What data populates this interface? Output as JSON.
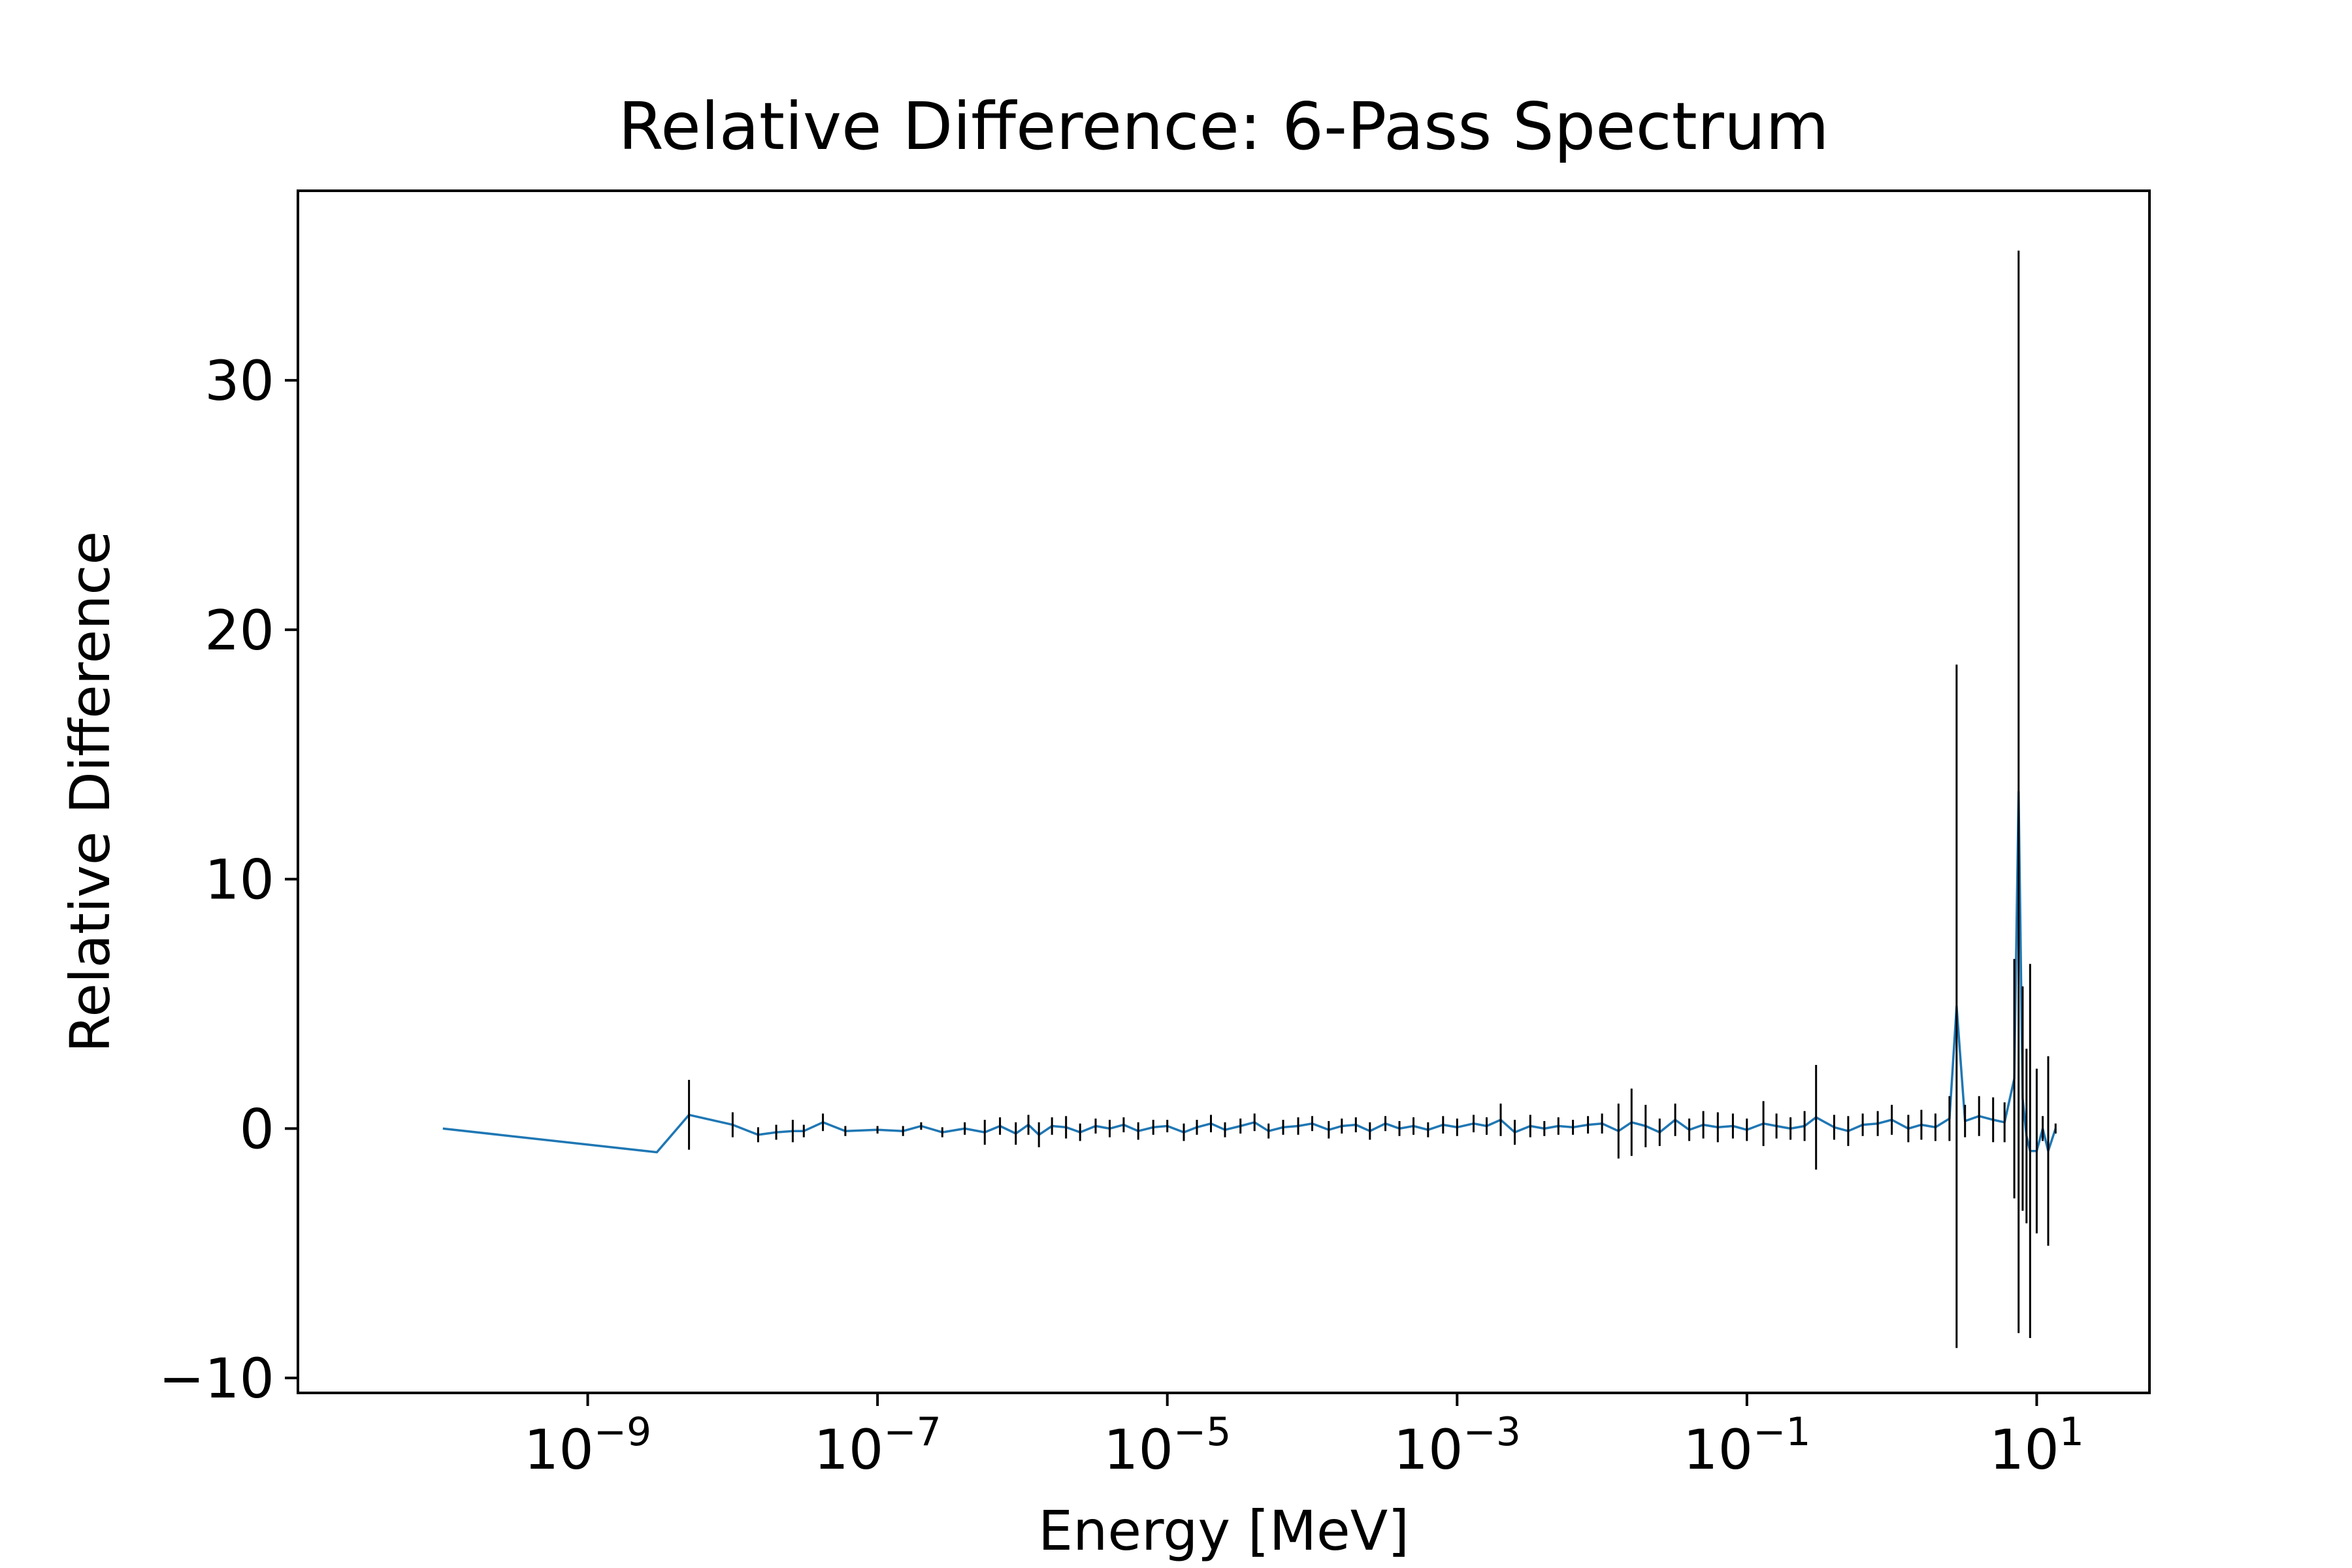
{
  "chart_data": {
    "type": "line",
    "title": "Relative Difference: 6-Pass Spectrum",
    "xlabel": "Energy [MeV]",
    "ylabel": "Relative Difference",
    "xscale": "log",
    "xlim": [
      1e-11,
      60
    ],
    "ylim": [
      -10.6,
      37.6
    ],
    "grid": false,
    "legend": "none",
    "x_ticks": [
      {
        "value": 1e-09,
        "base": "10",
        "exp": "−9"
      },
      {
        "value": 1e-07,
        "base": "10",
        "exp": "−7"
      },
      {
        "value": 1e-05,
        "base": "10",
        "exp": "−5"
      },
      {
        "value": 0.001,
        "base": "10",
        "exp": "−3"
      },
      {
        "value": 0.1,
        "base": "10",
        "exp": "−1"
      },
      {
        "value": 10,
        "base": "10",
        "exp": "1"
      }
    ],
    "y_ticks": [
      {
        "value": -10,
        "label": "−10"
      },
      {
        "value": 0,
        "label": "0"
      },
      {
        "value": 10,
        "label": "10"
      },
      {
        "value": 20,
        "label": "20"
      },
      {
        "value": 30,
        "label": "30"
      }
    ],
    "colors": {
      "line": "#1f77b4",
      "errorbar": "#000000"
    },
    "series": [
      {
        "x": [
          1e-10,
          3e-09,
          5e-09,
          1e-08,
          1.5e-08,
          2e-08,
          2.6e-08,
          3.1e-08,
          4.2e-08,
          6e-08,
          1e-07,
          1.5e-07,
          2e-07,
          2.8e-07,
          4e-07,
          5.5e-07,
          7e-07,
          9e-07,
          1.1e-06,
          1.3e-06,
          1.6e-06,
          2e-06,
          2.5e-06,
          3.2e-06,
          4e-06,
          5e-06,
          6.3e-06,
          8e-06,
          1e-05,
          1.3e-05,
          1.6e-05,
          2e-05,
          2.5e-05,
          3.2e-05,
          4e-05,
          5e-05,
          6.3e-05,
          8e-05,
          0.0001,
          0.00013,
          0.00016,
          0.0002,
          0.00025,
          0.00032,
          0.0004,
          0.0005,
          0.00063,
          0.0008,
          0.001,
          0.0013,
          0.0016,
          0.002,
          0.0025,
          0.0032,
          0.004,
          0.005,
          0.0063,
          0.008,
          0.01,
          0.013,
          0.016,
          0.02,
          0.025,
          0.032,
          0.04,
          0.05,
          0.063,
          0.08,
          0.1,
          0.13,
          0.16,
          0.2,
          0.25,
          0.3,
          0.4,
          0.5,
          0.63,
          0.8,
          1.0,
          1.3,
          1.6,
          2.0,
          2.5,
          2.8,
          3.2,
          4.0,
          5.0,
          6.0,
          7.0,
          7.5,
          8.0,
          8.5,
          9.0,
          10.0,
          11.0,
          12.0,
          13.5
        ],
        "values": [
          0,
          -0.95,
          0.55,
          0.15,
          -0.25,
          -0.15,
          -0.1,
          -0.1,
          0.25,
          -0.1,
          -0.05,
          -0.1,
          0.1,
          -0.15,
          0,
          -0.15,
          0.1,
          -0.2,
          0.15,
          -0.25,
          0.1,
          0.05,
          -0.15,
          0.1,
          0,
          0.15,
          -0.1,
          0.05,
          0.1,
          -0.15,
          0.05,
          0.2,
          -0.05,
          0.1,
          0.25,
          -0.1,
          0.05,
          0.1,
          0.2,
          -0.05,
          0.1,
          0.15,
          -0.1,
          0.2,
          0,
          0.1,
          -0.05,
          0.15,
          0.05,
          0.2,
          0.1,
          0.35,
          -0.15,
          0.1,
          0,
          0.1,
          0.05,
          0.15,
          0.2,
          -0.1,
          0.25,
          0.1,
          -0.15,
          0.35,
          -0.05,
          0.15,
          0.05,
          0.1,
          -0.05,
          0.2,
          0.1,
          0,
          0.1,
          0.45,
          0.05,
          -0.1,
          0.15,
          0.2,
          0.35,
          0,
          0.15,
          0.05,
          0.4,
          4.9,
          0.3,
          0.5,
          0.35,
          0.25,
          2.0,
          13.5,
          1.2,
          -0.3,
          -0.9,
          -0.9,
          0,
          -0.9,
          0
        ],
        "errors": [
          0,
          0,
          1.4,
          0.5,
          0.3,
          0.3,
          0.45,
          0.25,
          0.35,
          0.2,
          0.15,
          0.2,
          0.15,
          0.2,
          0.25,
          0.5,
          0.35,
          0.45,
          0.4,
          0.5,
          0.35,
          0.45,
          0.35,
          0.3,
          0.35,
          0.3,
          0.35,
          0.3,
          0.25,
          0.35,
          0.3,
          0.35,
          0.3,
          0.3,
          0.35,
          0.3,
          0.3,
          0.35,
          0.3,
          0.35,
          0.3,
          0.3,
          0.35,
          0.3,
          0.3,
          0.35,
          0.3,
          0.35,
          0.35,
          0.35,
          0.35,
          0.65,
          0.5,
          0.45,
          0.3,
          0.35,
          0.3,
          0.35,
          0.4,
          1.1,
          1.35,
          0.85,
          0.55,
          0.65,
          0.45,
          0.55,
          0.6,
          0.5,
          0.45,
          0.9,
          0.5,
          0.45,
          0.6,
          2.1,
          0.5,
          0.6,
          0.45,
          0.5,
          0.6,
          0.55,
          0.6,
          0.55,
          0.9,
          13.7,
          0.65,
          0.8,
          0.9,
          0.8,
          4.8,
          21.7,
          4.5,
          3.5,
          7.5,
          3.3,
          0.5,
          3.8,
          0.2
        ]
      }
    ]
  }
}
